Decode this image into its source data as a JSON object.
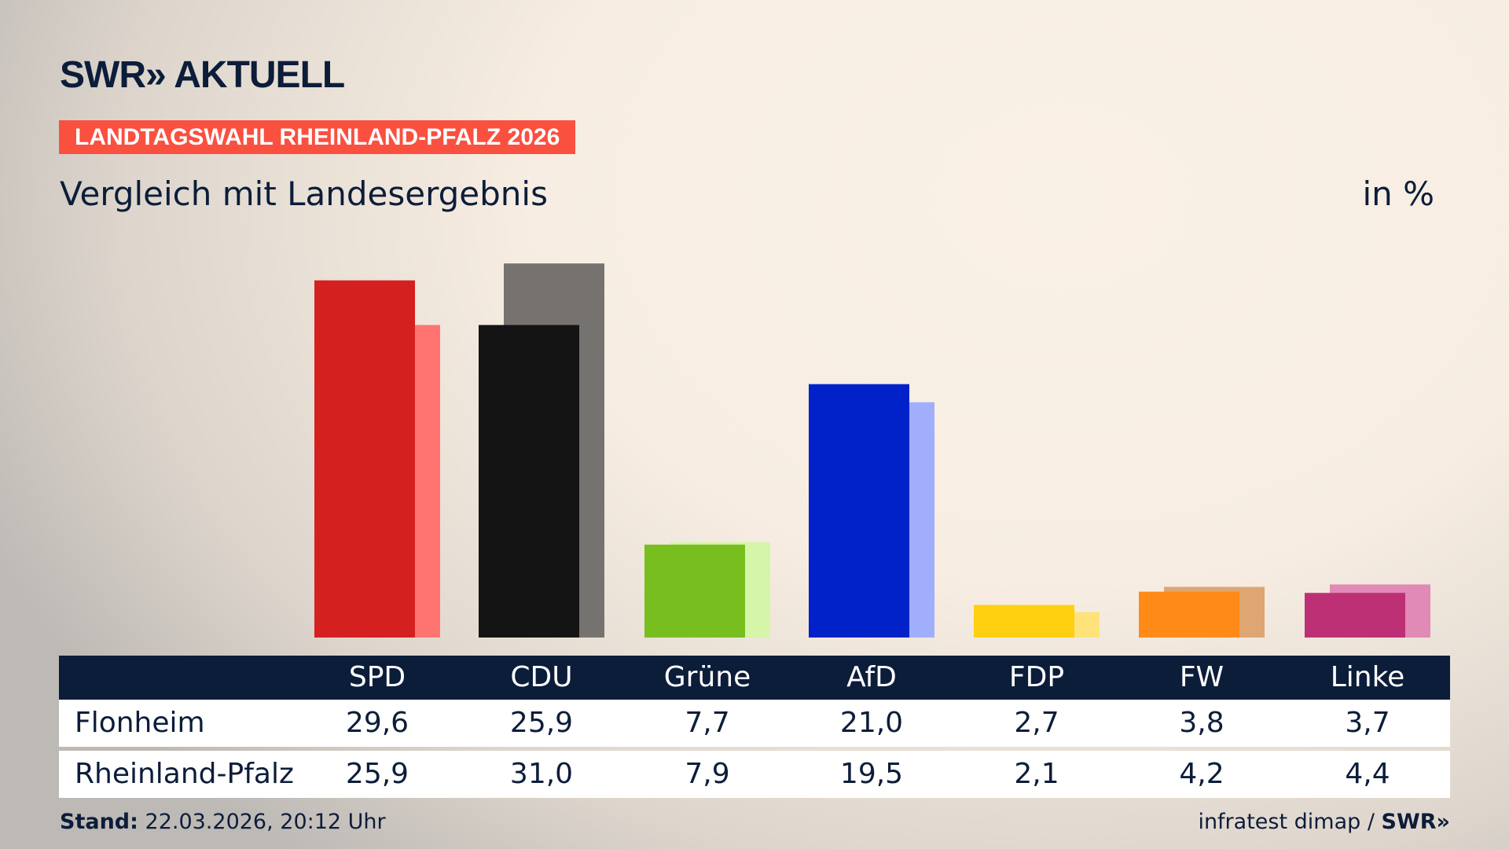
{
  "header": {
    "logo": "SWR» AKTUELL",
    "banner": "LANDTAGSWAHL RHEINLAND-PFALZ 2026",
    "subtitle": "Vergleich mit Landesergebnis",
    "unit": "in %"
  },
  "chart_data": {
    "type": "bar",
    "categories": [
      "SPD",
      "CDU",
      "Grüne",
      "AfD",
      "FDP",
      "FW",
      "Linke"
    ],
    "series": [
      {
        "name": "Flonheim",
        "values": [
          29.6,
          25.9,
          7.7,
          21.0,
          2.7,
          3.8,
          3.7
        ],
        "colors": [
          "#d52020",
          "#141414",
          "#78be1e",
          "#0022c8",
          "#ffd010",
          "#ff8a18",
          "#be3075"
        ]
      },
      {
        "name": "Rheinland-Pfalz",
        "values": [
          25.9,
          31.0,
          7.9,
          19.5,
          2.1,
          4.2,
          4.4
        ],
        "colors": [
          "#ff7470",
          "#767270",
          "#d5f5a8",
          "#a0aefc",
          "#ffe27a",
          "#dea672",
          "#e08ab5"
        ]
      }
    ],
    "ylim": [
      0,
      32
    ],
    "grid": false
  },
  "table": {
    "headers": [
      "SPD",
      "CDU",
      "Grüne",
      "AfD",
      "FDP",
      "FW",
      "Linke"
    ],
    "rows": [
      {
        "label": "Flonheim",
        "values": [
          "29,6",
          "25,9",
          "7,7",
          "21,0",
          "2,7",
          "3,8",
          "3,7"
        ]
      },
      {
        "label": "Rheinland-Pfalz",
        "values": [
          "25,9",
          "31,0",
          "7,9",
          "19,5",
          "2,1",
          "4,2",
          "4,4"
        ]
      }
    ]
  },
  "footer": {
    "stand_label": "Stand:",
    "stand_value": "22.03.2026, 20:12 Uhr",
    "source": "infratest dimap / ",
    "source_logo": "SWR»"
  }
}
